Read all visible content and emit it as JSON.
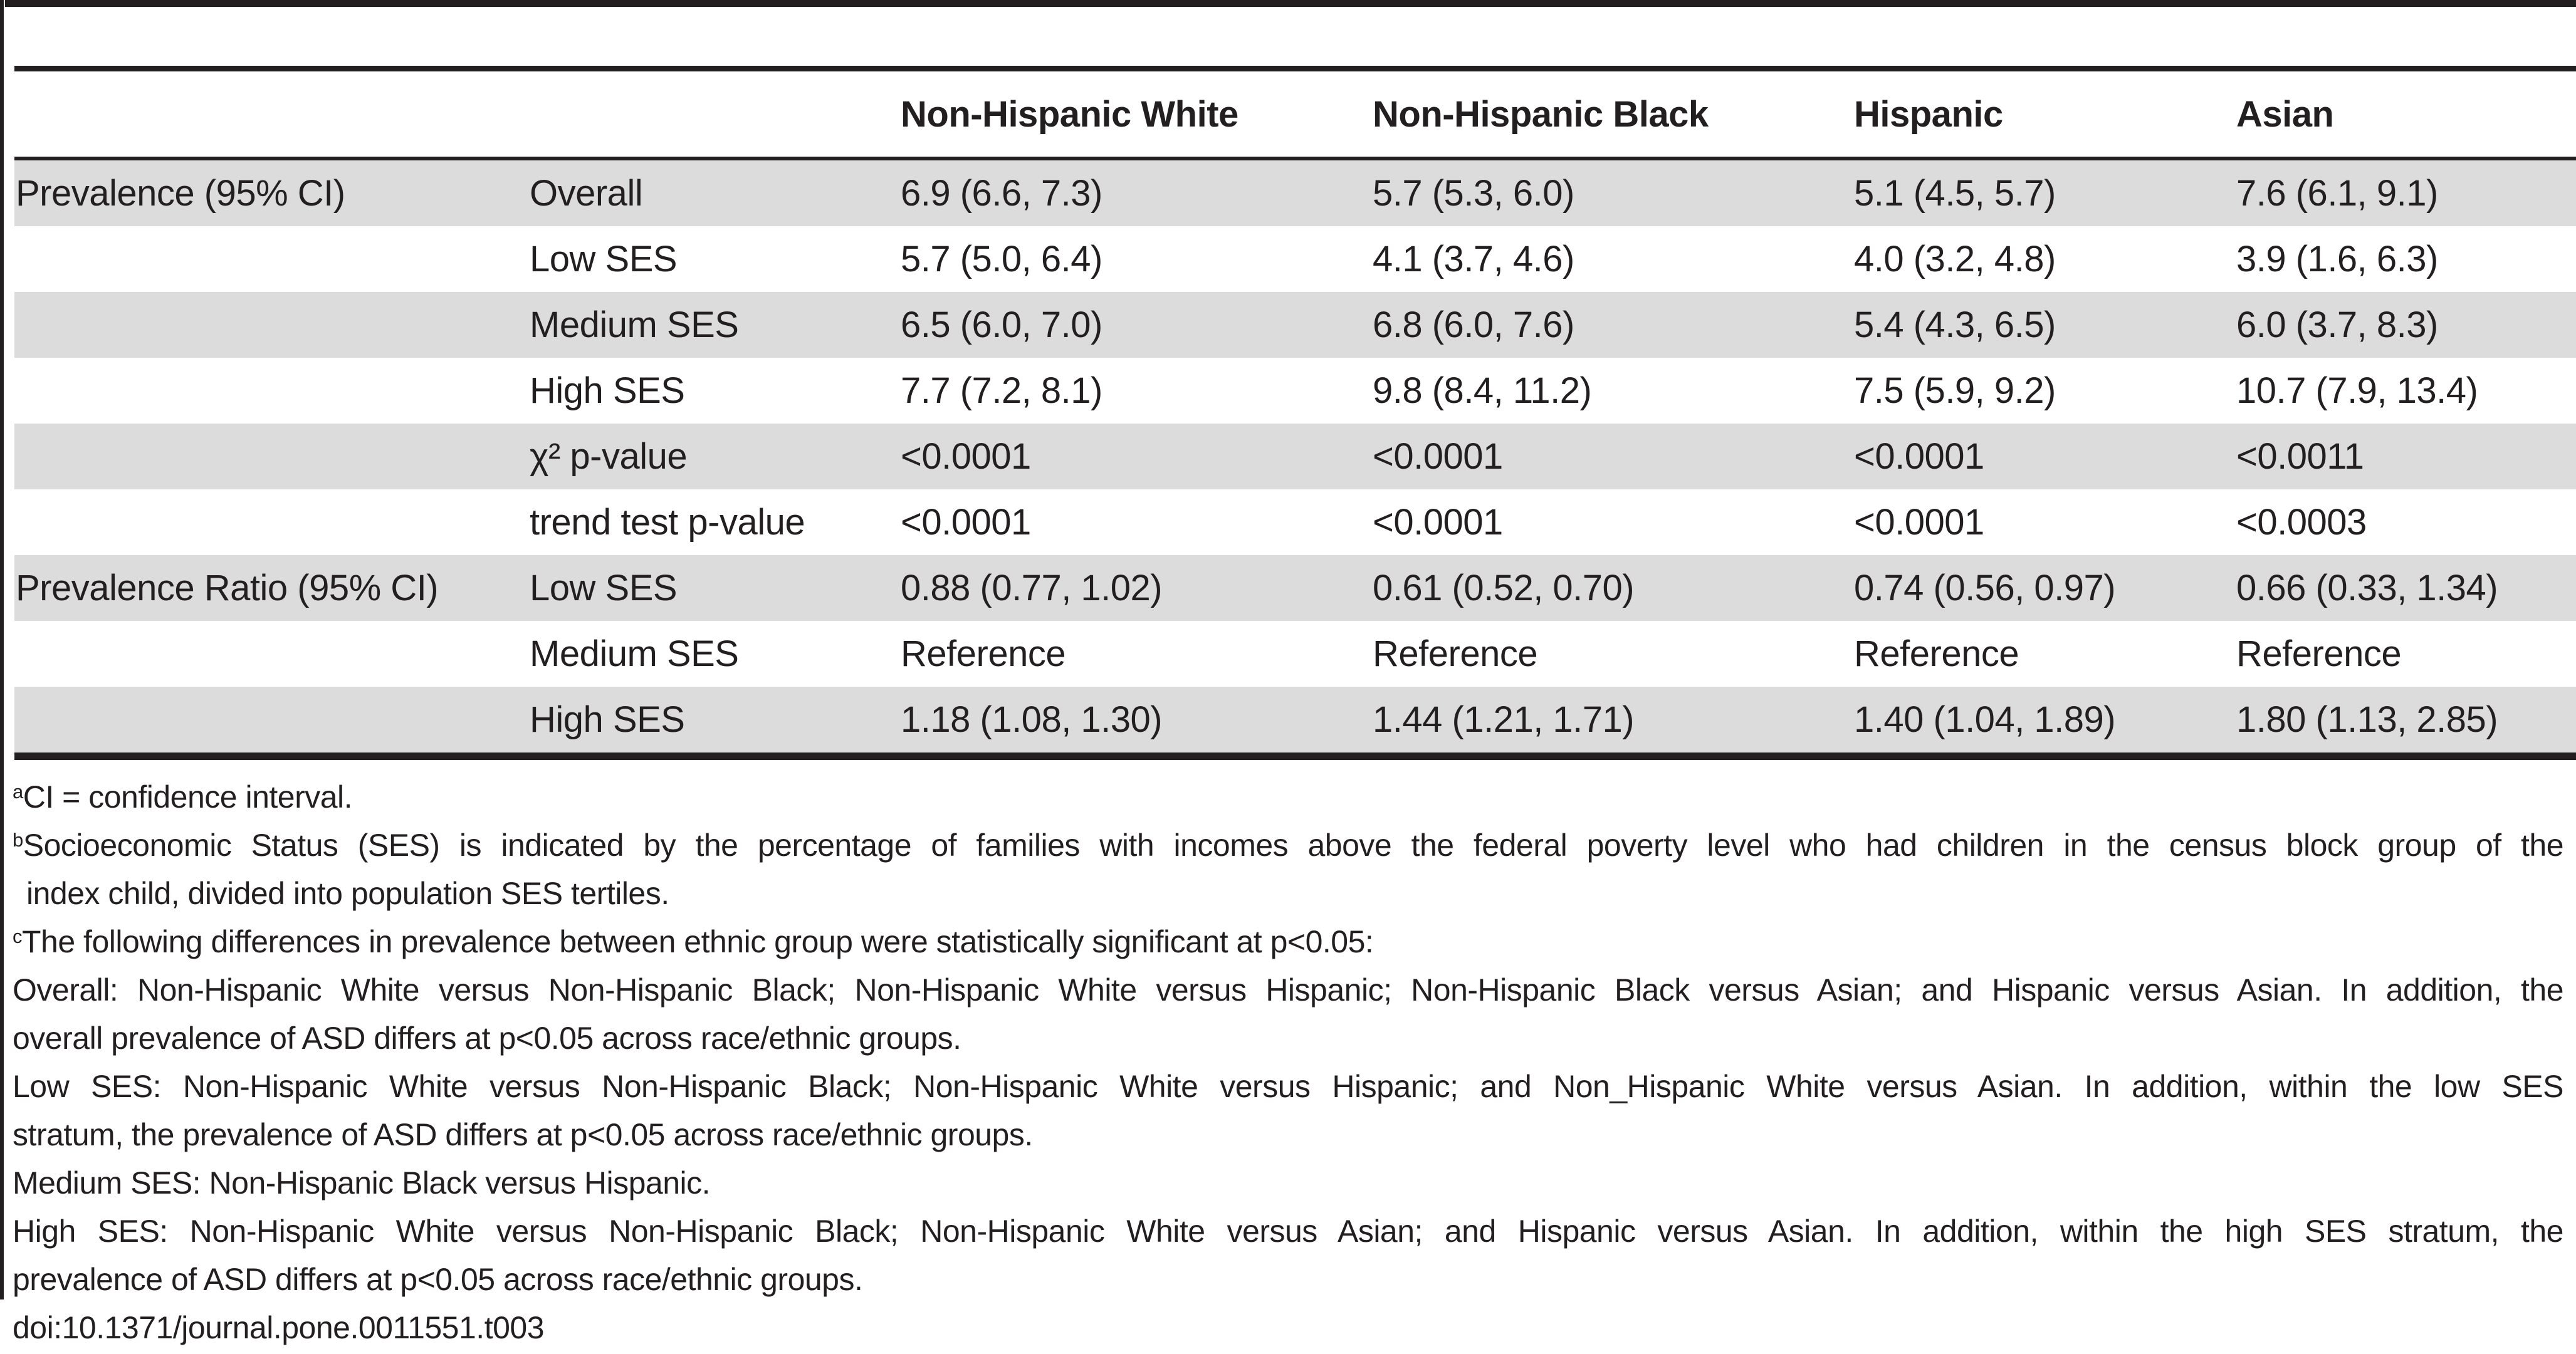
{
  "colors": {
    "stripe": "#dcdcdd",
    "rule": "#231f20",
    "text": "#231f20"
  },
  "table": {
    "header": [
      "",
      "",
      "Non-Hispanic White",
      "Non-Hispanic Black",
      "Hispanic",
      "Asian"
    ],
    "rows": [
      {
        "cells": [
          "Prevalence (95% CI)",
          "Overall",
          "6.9 (6.6, 7.3)",
          "5.7 (5.3, 6.0)",
          "5.1 (4.5, 5.7)",
          "7.6 (6.1, 9.1)"
        ]
      },
      {
        "cells": [
          "",
          "Low SES",
          "5.7 (5.0, 6.4)",
          "4.1 (3.7, 4.6)",
          "4.0 (3.2, 4.8)",
          "3.9 (1.6, 6.3)"
        ]
      },
      {
        "cells": [
          "",
          "Medium SES",
          "6.5 (6.0, 7.0)",
          "6.8 (6.0, 7.6)",
          "5.4 (4.3, 6.5)",
          "6.0 (3.7, 8.3)"
        ]
      },
      {
        "cells": [
          "",
          "High SES",
          "7.7 (7.2, 8.1)",
          "9.8 (8.4, 11.2)",
          "7.5 (5.9, 9.2)",
          "10.7 (7.9, 13.4)"
        ]
      },
      {
        "cells": [
          "",
          "χ² p-value",
          "<0.0001",
          "<0.0001",
          "<0.0001",
          "<0.0011"
        ]
      },
      {
        "cells": [
          "",
          "trend test p-value",
          "<0.0001",
          "<0.0001",
          "<0.0001",
          "<0.0003"
        ]
      },
      {
        "cells": [
          "Prevalence Ratio (95% CI)",
          "Low SES",
          "0.88 (0.77, 1.02)",
          "0.61 (0.52, 0.70)",
          "0.74 (0.56, 0.97)",
          "0.66 (0.33, 1.34)"
        ]
      },
      {
        "cells": [
          "",
          "Medium SES",
          "Reference",
          "Reference",
          "Reference",
          "Reference"
        ]
      },
      {
        "cells": [
          "",
          "High SES",
          "1.18 (1.08, 1.30)",
          "1.44 (1.21, 1.71)",
          "1.40 (1.04, 1.89)",
          "1.80 (1.13, 2.85)"
        ]
      }
    ]
  },
  "footnotes": {
    "lines": [
      {
        "marker": "a",
        "text": "CI = confidence interval."
      },
      {
        "marker": "b",
        "text": "Socioeconomic Status (SES) is indicated by the percentage of families with incomes above the federal poverty level who had children in the census block group of the"
      },
      {
        "marker": "",
        "text": "index child, divided into population SES tertiles."
      },
      {
        "marker": "c",
        "text": "The following differences in prevalence between ethnic group were statistically significant at p<0.05:"
      },
      {
        "marker": "",
        "text": "Overall: Non-Hispanic White versus Non-Hispanic Black; Non-Hispanic White versus Hispanic; Non-Hispanic Black versus Asian; and Hispanic versus Asian. In addition, the"
      },
      {
        "marker": "",
        "text": "overall prevalence of ASD differs at p<0.05 across race/ethnic groups."
      },
      {
        "marker": "",
        "text": "Low SES: Non-Hispanic White versus Non-Hispanic Black; Non-Hispanic White versus Hispanic; and Non_Hispanic White versus Asian. In addition, within the low SES"
      },
      {
        "marker": "",
        "text": "stratum, the prevalence of ASD differs at p<0.05 across race/ethnic groups."
      },
      {
        "marker": "",
        "text": "Medium SES: Non-Hispanic Black versus Hispanic."
      },
      {
        "marker": "",
        "text": "High SES: Non-Hispanic White versus Non-Hispanic Black; Non-Hispanic White versus Asian; and Hispanic versus Asian. In addition, within the high SES stratum, the"
      },
      {
        "marker": "",
        "text": "prevalence of ASD differs at p<0.05 across race/ethnic groups."
      },
      {
        "marker": "",
        "text": "doi:10.1371/journal.pone.0011551.t003"
      }
    ]
  }
}
